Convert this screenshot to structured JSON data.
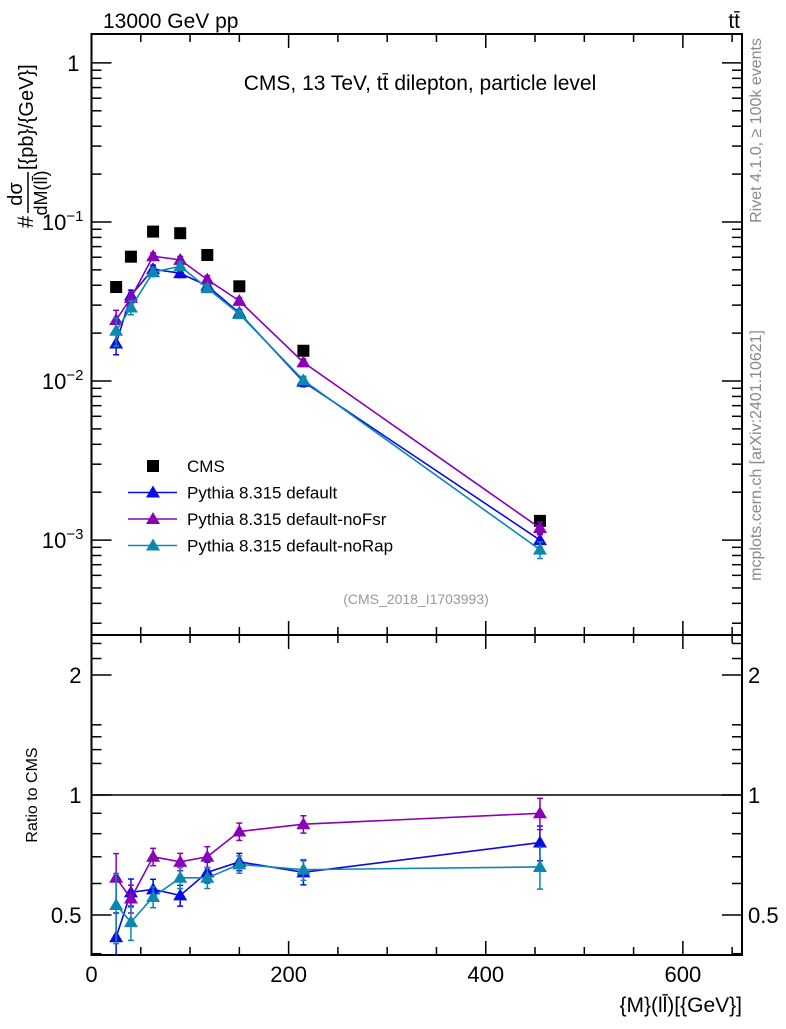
{
  "chart_data": {
    "type": "line",
    "header_left": "13000 GeV pp",
    "header_right": "tt̄",
    "title": "CMS, 13 TeV, tt̄ dilepton, particle level",
    "analysis_label": "(CMS_2018_I1703993)",
    "side_text_top": "Rivet 4.1.0, ≥ 100k events",
    "side_text_bottom": "mcplots.cern.ch [arXiv:2401.10621]",
    "ylabel": {
      "prefix": "#",
      "numerator": "dσ",
      "denominator": "dM(ll̄)",
      "suffix": "[{pb}/{GeV}]"
    },
    "xlabel": "{M}(ll̄)[{GeV}]",
    "xlim": [
      0,
      660
    ],
    "ylim": [
      0.000253,
      1.52
    ],
    "yscale": "log",
    "xticks": [
      0,
      200,
      400,
      600
    ],
    "xtick_labels": [
      "0",
      "200",
      "400",
      "600"
    ],
    "yticks": [
      {
        "value": 1,
        "base": "1",
        "exp": ""
      },
      {
        "value": 0.1,
        "base": "10",
        "exp": "−1"
      },
      {
        "value": 0.01,
        "base": "10",
        "exp": "−2"
      },
      {
        "value": 0.001,
        "base": "10",
        "exp": "−3"
      }
    ],
    "x": [
      25,
      40,
      62.5,
      90,
      117.5,
      150,
      215,
      455
    ],
    "series": [
      {
        "name": "CMS",
        "marker": "square",
        "color": "#000000",
        "values": [
          0.039,
          0.0605,
          0.087,
          0.085,
          0.062,
          0.0394,
          0.0155,
          0.00132
        ]
      },
      {
        "name": "Pythia 8.315 default",
        "marker": "triangle",
        "color": "#0a0ae6",
        "values": [
          0.0172,
          0.0345,
          0.0505,
          0.0476,
          0.0397,
          0.0268,
          0.0099,
          0.001
        ],
        "rel_err": [
          0.15,
          0.08,
          0.06,
          0.06,
          0.06,
          0.05,
          0.07,
          0.1
        ]
      },
      {
        "name": "Pythia 8.315 default-noFsr",
        "marker": "triangle",
        "color": "#8a00b8",
        "values": [
          0.0242,
          0.0333,
          0.0609,
          0.0578,
          0.0434,
          0.0319,
          0.0131,
          0.00119
        ],
        "rel_err": [
          0.15,
          0.08,
          0.05,
          0.05,
          0.06,
          0.05,
          0.05,
          0.09
        ]
      },
      {
        "name": "Pythia 8.315 default-noRap",
        "marker": "triangle",
        "color": "#0a88b0",
        "values": [
          0.0207,
          0.029,
          0.0483,
          0.0527,
          0.0384,
          0.0264,
          0.0101,
          0.00087
        ],
        "rel_err": [
          0.2,
          0.1,
          0.06,
          0.06,
          0.06,
          0.05,
          0.06,
          0.12
        ]
      }
    ],
    "legend_position": "lower-left",
    "ratio": {
      "ylabel": "Ratio to CMS",
      "yscale": "log",
      "ylim": [
        0.397,
        2.52
      ],
      "yticks": [
        0.5,
        1,
        2
      ],
      "ytick_labels": [
        "0.5",
        "1",
        "2"
      ],
      "series": [
        {
          "name": "Pythia 8.315 default",
          "color": "#0a0ae6",
          "values": [
            0.44,
            0.57,
            0.58,
            0.56,
            0.64,
            0.68,
            0.64,
            0.76
          ],
          "rel_err": [
            0.15,
            0.08,
            0.06,
            0.06,
            0.06,
            0.05,
            0.07,
            0.1
          ]
        },
        {
          "name": "Pythia 8.315 default-noFsr",
          "color": "#8a00b8",
          "values": [
            0.62,
            0.55,
            0.7,
            0.68,
            0.7,
            0.81,
            0.845,
            0.9
          ],
          "rel_err": [
            0.15,
            0.08,
            0.05,
            0.05,
            0.06,
            0.05,
            0.05,
            0.09
          ]
        },
        {
          "name": "Pythia 8.315 default-noRap",
          "color": "#0a88b0",
          "values": [
            0.53,
            0.48,
            0.555,
            0.62,
            0.62,
            0.67,
            0.65,
            0.66
          ],
          "rel_err": [
            0.2,
            0.1,
            0.06,
            0.06,
            0.06,
            0.05,
            0.06,
            0.12
          ]
        }
      ]
    }
  }
}
